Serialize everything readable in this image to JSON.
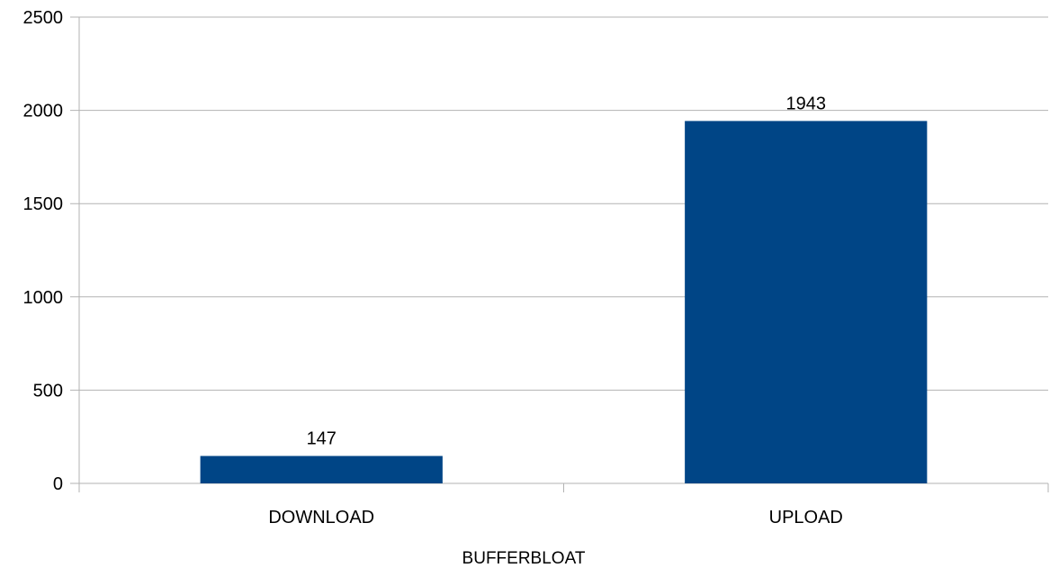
{
  "chart_data": {
    "type": "bar",
    "categories": [
      "DOWNLOAD",
      "UPLOAD"
    ],
    "values": [
      147,
      1943
    ],
    "data_labels": [
      "147",
      "1943"
    ],
    "xlabel": "BUFFERBLOAT",
    "ylabel": "",
    "ylim": [
      0,
      2500
    ],
    "yticks": [
      0,
      500,
      1000,
      1500,
      2000,
      2500
    ],
    "ytick_labels": [
      "0",
      "500",
      "1000",
      "1500",
      "2000",
      "2500"
    ],
    "grid": true,
    "legend": "none",
    "bar_color": "#004586",
    "grid_color": "#b3b3b3",
    "axis_color": "#b3b3b3"
  }
}
